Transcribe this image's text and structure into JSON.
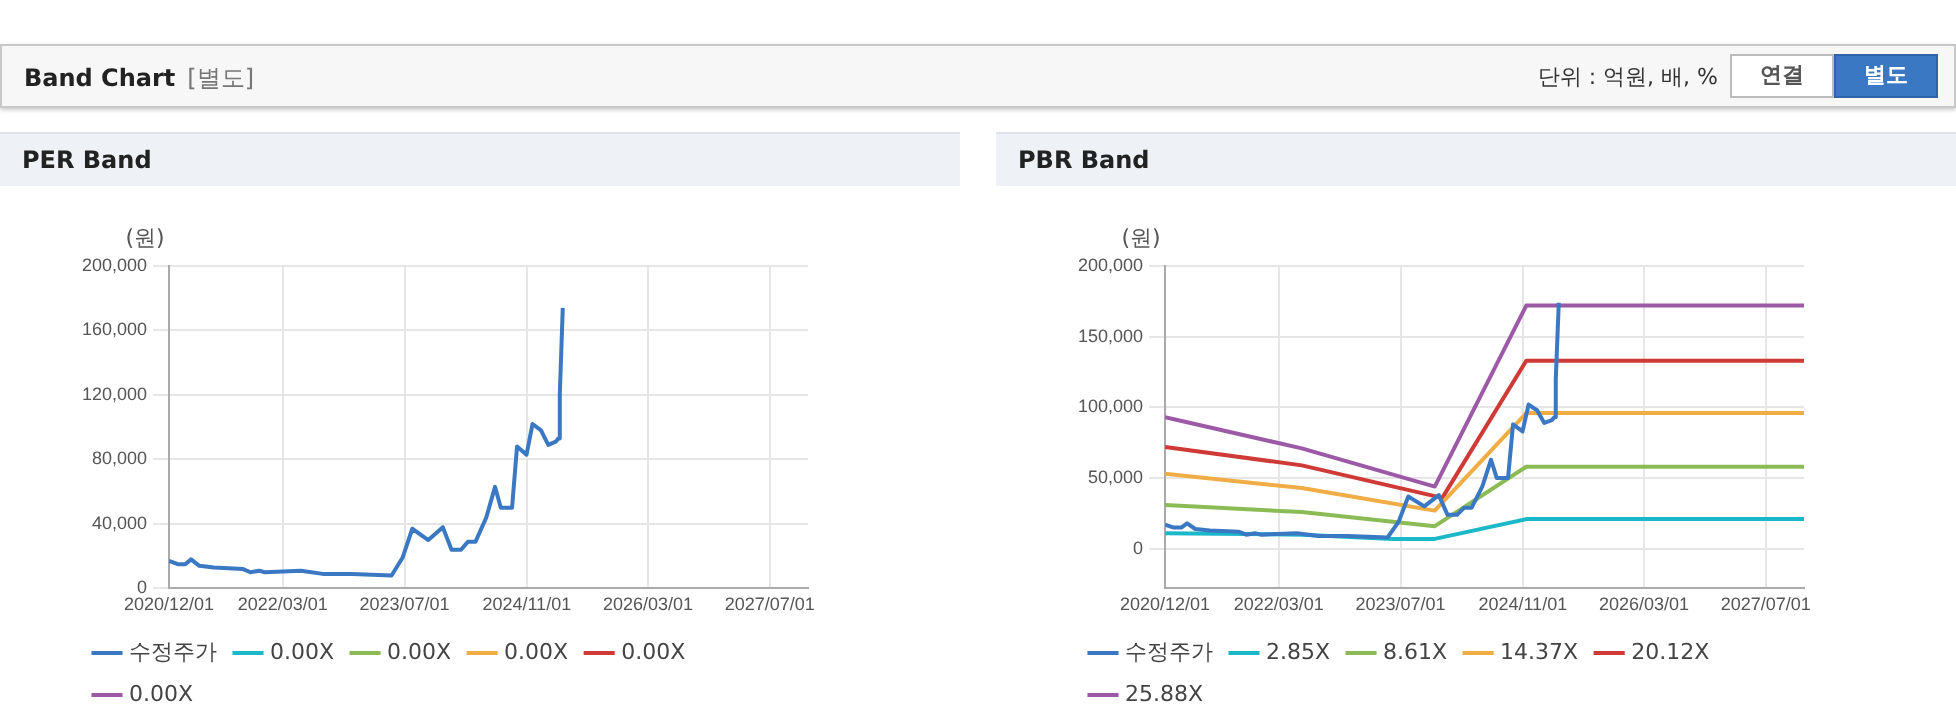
{
  "chart_data": [
    {
      "type": "other",
      "title": "Band Chart",
      "subtitle": "[별도]",
      "annotations": [
        "단위 : 억원, 배, %",
        "연결",
        "별도"
      ]
    },
    {
      "type": "line",
      "title": "PER Band",
      "ylabel": "(원)",
      "grid": true,
      "legend": "bottom",
      "marker": "none",
      "xlim": [
        "2020-12-01",
        "2027-12-01"
      ],
      "xticks": [
        {
          "value": "2020-12-01",
          "label": "2020/12/01"
        },
        {
          "value": "2022-03-01",
          "label": "2022/03/01"
        },
        {
          "value": "2023-07-01",
          "label": "2023/07/01"
        },
        {
          "value": "2024-11-01",
          "label": "2024/11/01"
        },
        {
          "value": "2026-03-01",
          "label": "2026/03/01"
        },
        {
          "value": "2027-07-01",
          "label": "2027/07/01"
        }
      ],
      "ylim": [
        0,
        200000
      ],
      "yticks": [
        0,
        {
          "value": 40000,
          "label": "40,000"
        },
        {
          "value": 80000,
          "label": "80,000"
        },
        {
          "value": 120000,
          "label": "120,000"
        },
        {
          "value": 160000,
          "label": "160,000"
        },
        {
          "value": 200000,
          "label": "200,000"
        }
      ],
      "x": [
        "2020-12-01",
        "2021-01-05",
        "2021-02-04",
        "2021-02-27",
        "2021-04-01",
        "2021-05-29",
        "2021-09-23",
        "2021-10-22",
        "2021-11-26",
        "2021-12-19",
        "2022-05-12",
        "2022-08-08",
        "2022-12-03",
        "2023-05-10",
        "2023-06-23",
        "2023-08-01",
        "2023-10-04",
        "2023-12-01",
        "2024-01-05",
        "2024-02-12",
        "2024-03-11",
        "2024-04-10",
        "2024-05-23",
        "2024-06-27",
        "2024-07-20",
        "2024-09-03",
        "2024-09-23",
        "2024-10-31",
        "2024-11-24",
        "2024-12-28",
        "2025-01-26",
        "2025-02-25",
        "2025-03-07",
        "2025-03-13",
        "2025-03-19",
        "2025-03-25"
      ],
      "series": [
        {
          "name": "수정주가",
          "color": "#3a78c3",
          "values": [
            17000,
            15000,
            15000,
            18000,
            14000,
            13000,
            12000,
            10000,
            11000,
            10000,
            11000,
            9000,
            9000,
            8000,
            19000,
            37000,
            30000,
            38000,
            24000,
            24000,
            29000,
            29000,
            44000,
            63000,
            50000,
            50000,
            88000,
            83000,
            102000,
            98000,
            89000,
            91000,
            93000,
            120000,
            147000,
            174000
          ]
        },
        {
          "name": "0.00X",
          "color": "#1ab8c9",
          "values": [
            null,
            null,
            null,
            null,
            null,
            null,
            null,
            null,
            null,
            null,
            null,
            null,
            null,
            null,
            null,
            null,
            null,
            null,
            null,
            null,
            null,
            null,
            null,
            null,
            null,
            null,
            null,
            null,
            null,
            null,
            null,
            null,
            null,
            null,
            null,
            null
          ]
        },
        {
          "name": "0.00X",
          "color": "#8bbb55",
          "values": [
            null,
            null,
            null,
            null,
            null,
            null,
            null,
            null,
            null,
            null,
            null,
            null,
            null,
            null,
            null,
            null,
            null,
            null,
            null,
            null,
            null,
            null,
            null,
            null,
            null,
            null,
            null,
            null,
            null,
            null,
            null,
            null,
            null,
            null,
            null,
            null
          ]
        },
        {
          "name": "0.00X",
          "color": "#f0ac45",
          "values": [
            null,
            null,
            null,
            null,
            null,
            null,
            null,
            null,
            null,
            null,
            null,
            null,
            null,
            null,
            null,
            null,
            null,
            null,
            null,
            null,
            null,
            null,
            null,
            null,
            null,
            null,
            null,
            null,
            null,
            null,
            null,
            null,
            null,
            null,
            null,
            null
          ]
        },
        {
          "name": "0.00X",
          "color": "#d03a36",
          "values": [
            null,
            null,
            null,
            null,
            null,
            null,
            null,
            null,
            null,
            null,
            null,
            null,
            null,
            null,
            null,
            null,
            null,
            null,
            null,
            null,
            null,
            null,
            null,
            null,
            null,
            null,
            null,
            null,
            null,
            null,
            null,
            null,
            null,
            null,
            null,
            null
          ]
        },
        {
          "name": "0.00X",
          "color": "#9b59a6",
          "values": [
            null,
            null,
            null,
            null,
            null,
            null,
            null,
            null,
            null,
            null,
            null,
            null,
            null,
            null,
            null,
            null,
            null,
            null,
            null,
            null,
            null,
            null,
            null,
            null,
            null,
            null,
            null,
            null,
            null,
            null,
            null,
            null,
            null,
            null,
            null,
            null
          ]
        }
      ]
    },
    {
      "type": "line",
      "title": "PBR Band",
      "ylabel": "(원)",
      "grid": true,
      "legend": "bottom",
      "marker": "none",
      "xlim": [
        "2020-12-01",
        "2027-12-01"
      ],
      "xticks": [
        {
          "value": "2020-12-01",
          "label": "2020/12/01"
        },
        {
          "value": "2022-03-01",
          "label": "2022/03/01"
        },
        {
          "value": "2023-07-01",
          "label": "2023/07/01"
        },
        {
          "value": "2024-11-01",
          "label": "2024/11/01"
        },
        {
          "value": "2026-03-01",
          "label": "2026/03/01"
        },
        {
          "value": "2027-07-01",
          "label": "2027/07/01"
        }
      ],
      "ylim": [
        -28000,
        200000
      ],
      "yticks": [
        0,
        {
          "value": 50000,
          "label": "50,000"
        },
        {
          "value": 100000,
          "label": "100,000"
        },
        {
          "value": 150000,
          "label": "150,000"
        },
        {
          "value": 200000,
          "label": "200,000"
        }
      ],
      "x": [
        "2020-12-01",
        "2021-01-05",
        "2021-02-04",
        "2021-02-27",
        "2021-04-01",
        "2021-05-29",
        "2021-09-23",
        "2021-10-22",
        "2021-11-26",
        "2021-12-19",
        "2022-05-12",
        "2022-08-08",
        "2022-12-03",
        "2023-05-10",
        "2023-06-23",
        "2023-08-01",
        "2023-10-04",
        "2023-12-01",
        "2024-01-05",
        "2024-02-12",
        "2024-03-11",
        "2024-04-10",
        "2024-05-23",
        "2024-06-27",
        "2024-07-20",
        "2024-09-03",
        "2024-09-23",
        "2024-10-31",
        "2024-11-24",
        "2024-12-28",
        "2025-01-26",
        "2025-02-25",
        "2025-03-07",
        "2025-03-13",
        "2025-03-19",
        "2025-03-25"
      ],
      "series": [
        {
          "name": "수정주가",
          "color": "#3a78c3",
          "values": [
            17000,
            15000,
            15000,
            18000,
            14000,
            13000,
            12000,
            10000,
            11000,
            10000,
            11000,
            9000,
            9000,
            8000,
            19000,
            37000,
            30000,
            38000,
            24000,
            24000,
            29000,
            29000,
            44000,
            63000,
            50000,
            50000,
            88000,
            83000,
            102000,
            98000,
            89000,
            91000,
            93000,
            120000,
            147000,
            174000
          ]
        },
        {
          "name": "2.85X",
          "color": "#1ab8c9",
          "x": [
            "2020-12-01",
            "2022-06-01",
            "2023-06-01",
            "2023-11-15",
            "2024-11-15",
            "2027-12-01"
          ],
          "values": [
            11000,
            10000,
            7000,
            7000,
            21000,
            21000
          ]
        },
        {
          "name": "8.61X",
          "color": "#8bbb55",
          "x": [
            "2020-12-01",
            "2022-06-01",
            "2023-11-15",
            "2024-11-15",
            "2027-12-01"
          ],
          "values": [
            31000,
            26000,
            16000,
            58000,
            58000
          ]
        },
        {
          "name": "14.37X",
          "color": "#f0ac45",
          "x": [
            "2020-12-01",
            "2022-06-01",
            "2023-11-15",
            "2024-11-15",
            "2027-12-01"
          ],
          "values": [
            53000,
            43000,
            27000,
            96000,
            96000
          ]
        },
        {
          "name": "20.12X",
          "color": "#d03a36",
          "x": [
            "2020-12-01",
            "2022-06-01",
            "2023-12-15",
            "2024-11-15",
            "2027-12-01"
          ],
          "values": [
            72000,
            59000,
            36000,
            133000,
            133000
          ]
        },
        {
          "name": "25.88X",
          "color": "#9b59a6",
          "x": [
            "2020-12-01",
            "2022-06-01",
            "2023-11-15",
            "2024-11-15",
            "2027-12-01"
          ],
          "values": [
            93000,
            71000,
            44000,
            172000,
            172000
          ]
        }
      ]
    }
  ]
}
